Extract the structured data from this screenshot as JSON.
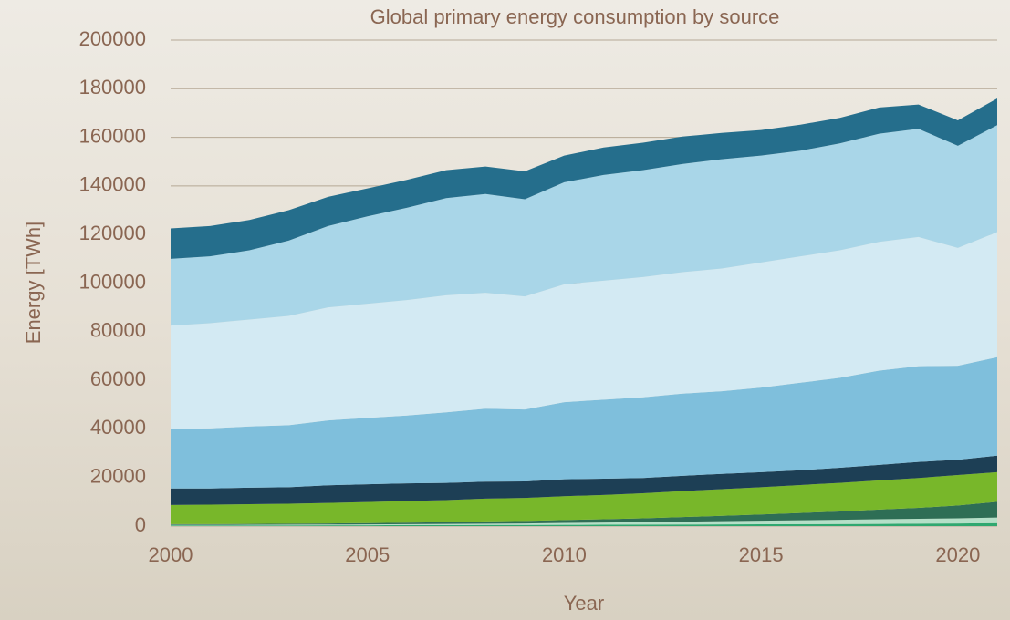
{
  "chart_data": {
    "type": "stacked_area",
    "title": "Global primary energy consumption by source",
    "x_label": "Year",
    "y_label": "Energy [TWh]",
    "x": [
      2000,
      2001,
      2002,
      2003,
      2004,
      2005,
      2006,
      2007,
      2008,
      2009,
      2010,
      2011,
      2012,
      2013,
      2014,
      2015,
      2016,
      2017,
      2018,
      2019,
      2020,
      2021
    ],
    "xlim": [
      2000,
      2021
    ],
    "xticks": [
      2000,
      2005,
      2010,
      2015,
      2020
    ],
    "ylim": [
      0,
      200000
    ],
    "yticks": [
      0,
      20000,
      40000,
      60000,
      80000,
      100000,
      120000,
      140000,
      160000,
      180000,
      200000
    ],
    "grid": true,
    "series": [
      {
        "color": "#2fa870",
        "values": [
          300,
          300,
          300,
          300,
          350,
          350,
          400,
          400,
          450,
          450,
          500,
          550,
          600,
          650,
          700,
          750,
          800,
          850,
          900,
          1000,
          1100,
          1200
        ]
      },
      {
        "color": "#b5e0c8",
        "values": [
          200,
          200,
          250,
          300,
          300,
          350,
          400,
          500,
          550,
          650,
          800,
          900,
          1000,
          1150,
          1300,
          1450,
          1600,
          1750,
          1900,
          2000,
          2100,
          2300
        ]
      },
      {
        "color": "#2e6e55",
        "values": [
          300,
          300,
          350,
          400,
          450,
          500,
          600,
          700,
          900,
          1000,
          1200,
          1350,
          1600,
          1900,
          2200,
          2600,
          3000,
          3400,
          4000,
          4500,
          5300,
          6500
        ]
      },
      {
        "color": "#78b72a",
        "values": [
          7900,
          8000,
          8100,
          8200,
          8400,
          8700,
          8900,
          9100,
          9400,
          9500,
          9800,
          10000,
          10300,
          10700,
          11000,
          11200,
          11500,
          11800,
          12000,
          12300,
          12500,
          12200
        ]
      },
      {
        "color": "#1d3f55",
        "values": [
          6800,
          6700,
          6800,
          6800,
          7300,
          7300,
          7300,
          7100,
          7000,
          6800,
          7000,
          6700,
          6300,
          6300,
          6300,
          6200,
          6100,
          6200,
          6400,
          6600,
          6300,
          6800
        ]
      },
      {
        "color": "#7fbfdc",
        "values": [
          24500,
          24700,
          25200,
          25500,
          26700,
          27300,
          27900,
          29000,
          30000,
          29600,
          31700,
          32500,
          33200,
          33800,
          34000,
          34800,
          36000,
          37000,
          38800,
          39400,
          38700,
          40500
        ]
      },
      {
        "color": "#d3eaf3",
        "values": [
          42500,
          43300,
          44000,
          45000,
          46500,
          47000,
          47500,
          48200,
          47700,
          46500,
          48500,
          49000,
          49500,
          50000,
          50500,
          51500,
          52000,
          52500,
          53000,
          53200,
          48500,
          51500
        ]
      },
      {
        "color": "#a9d6e8",
        "values": [
          27500,
          27500,
          28500,
          31000,
          33500,
          36000,
          38000,
          40000,
          40700,
          40000,
          42000,
          43500,
          44000,
          44500,
          45000,
          44000,
          43500,
          44000,
          44500,
          44500,
          42000,
          44000
        ]
      },
      {
        "color": "#256e8c",
        "values": [
          12500,
          12500,
          12500,
          12500,
          12000,
          11500,
          11500,
          11500,
          11300,
          11500,
          11000,
          11300,
          11300,
          11300,
          10800,
          10500,
          10700,
          10500,
          10800,
          10000,
          10500,
          11000
        ]
      }
    ]
  }
}
